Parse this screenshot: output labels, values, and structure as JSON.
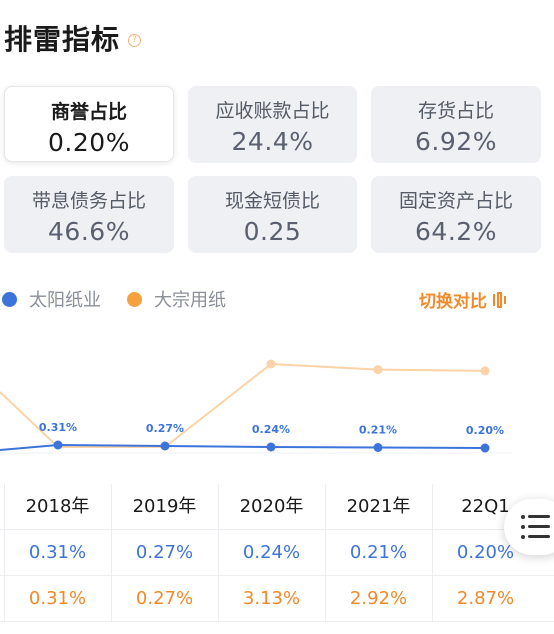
{
  "page": {
    "title": "排雷指标",
    "help_icon": "question-icon"
  },
  "cards": [
    {
      "label": "商誉占比",
      "value": "0.20%",
      "active": true
    },
    {
      "label": "应收账款占比",
      "value": "24.4%"
    },
    {
      "label": "存货占比",
      "value": "6.92%"
    },
    {
      "label": "带息债务占比",
      "value": "46.6%"
    },
    {
      "label": "现金短债比",
      "value": "0.25"
    },
    {
      "label": "固定资产占比",
      "value": "64.2%"
    }
  ],
  "legend": [
    {
      "name": "太阳纸业",
      "color": "#3d74dc"
    },
    {
      "name": "大宗用纸",
      "color": "#f7a03f"
    }
  ],
  "switch": {
    "label": "切换对比",
    "icon": "switch-icon"
  },
  "colors": {
    "blue": "#3d74dc",
    "orange": "#f7a03f",
    "orange_light": "#fbd3a6"
  },
  "chart_data": {
    "type": "line",
    "x": [
      "2018年",
      "2019年",
      "2020年",
      "2021年",
      "22Q1"
    ],
    "series": [
      {
        "name": "太阳纸业",
        "values": [
          0.31,
          0.27,
          0.24,
          0.21,
          0.2
        ],
        "labels": [
          "0.31%",
          "0.27%",
          "0.24%",
          "0.21%",
          "0.20%"
        ]
      },
      {
        "name": "大宗用纸",
        "values": [
          0.31,
          0.27,
          3.13,
          2.92,
          2.87
        ]
      }
    ]
  },
  "table": {
    "headers": [
      "2018年",
      "2019年",
      "2020年",
      "2021年",
      "22Q1"
    ],
    "rows": [
      [
        "0.31%",
        "0.27%",
        "0.24%",
        "0.21%",
        "0.20%"
      ],
      [
        "0.31%",
        "0.27%",
        "3.13%",
        "2.92%",
        "2.87%"
      ]
    ]
  },
  "menu_fab": {
    "icon": "list-icon"
  }
}
